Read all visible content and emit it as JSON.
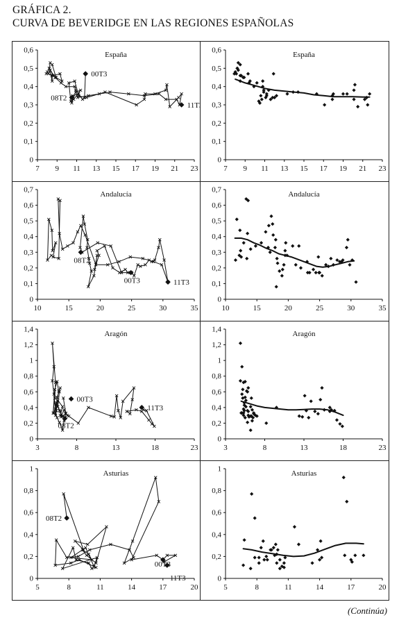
{
  "heading": {
    "line1": "GRÁFICA 2.",
    "line2": "CURVA DE BEVERIDGE EN LAS REGIONES ESPAÑOLAS"
  },
  "footer": "(Continúa)",
  "colors": {
    "ink": "#111111"
  },
  "chart_data": [
    {
      "type": "line",
      "title": "España",
      "xlim": [
        7,
        23
      ],
      "xticks": [
        7,
        9,
        11,
        13,
        15,
        17,
        19,
        21,
        23
      ],
      "ylim": [
        0,
        0.6
      ],
      "yticks": [
        0,
        0.1,
        0.2,
        0.3,
        0.4,
        0.5,
        0.6
      ],
      "ytick_labels": [
        "0",
        "0,1",
        "0,2",
        "0,3",
        "0,4",
        "0,5",
        "0,6"
      ],
      "points": [
        [
          11.9,
          0.47
        ],
        [
          11.8,
          0.34
        ],
        [
          11.2,
          0.35
        ],
        [
          10.8,
          0.43
        ],
        [
          10.2,
          0.42
        ],
        [
          10.4,
          0.32
        ],
        [
          10.7,
          0.33
        ],
        [
          11.4,
          0.38
        ],
        [
          10.9,
          0.37
        ],
        [
          10.5,
          0.31
        ],
        [
          10.6,
          0.35
        ],
        [
          11.2,
          0.36
        ],
        [
          11.6,
          0.33
        ],
        [
          12,
          0.34
        ],
        [
          13.9,
          0.37
        ],
        [
          17.1,
          0.3
        ],
        [
          17.9,
          0.33
        ],
        [
          18,
          0.36
        ],
        [
          19,
          0.36
        ],
        [
          20.1,
          0.38
        ],
        [
          20.2,
          0.41
        ],
        [
          20.5,
          0.29
        ],
        [
          21.4,
          0.34
        ],
        [
          21.7,
          0.36
        ],
        [
          21.5,
          0.3
        ],
        [
          21.2,
          0.33
        ],
        [
          20.1,
          0.33
        ],
        [
          19.4,
          0.36
        ],
        [
          17.9,
          0.35
        ],
        [
          16.3,
          0.36
        ],
        [
          14.4,
          0.37
        ],
        [
          13.3,
          0.36
        ],
        [
          12.2,
          0.35
        ],
        [
          11.1,
          0.34
        ],
        [
          10.9,
          0.38
        ],
        [
          10.8,
          0.4
        ],
        [
          9.9,
          0.4
        ],
        [
          9.4,
          0.42
        ],
        [
          8.8,
          0.45
        ],
        [
          8.3,
          0.49
        ],
        [
          8.1,
          0.47
        ],
        [
          8.5,
          0.46
        ],
        [
          8.5,
          0.43
        ],
        [
          8.2,
          0.5
        ],
        [
          8.6,
          0.46
        ],
        [
          9.3,
          0.47
        ],
        [
          9.5,
          0.43
        ],
        [
          8.9,
          0.45
        ],
        [
          8.5,
          0.52
        ],
        [
          8.3,
          0.53
        ],
        [
          8.2,
          0.5
        ],
        [
          8,
          0.48
        ],
        [
          7.9,
          0.47
        ]
      ],
      "trend": [
        [
          8,
          0.44
        ],
        [
          9,
          0.42
        ],
        [
          10,
          0.405
        ],
        [
          11,
          0.39
        ],
        [
          12,
          0.38
        ],
        [
          13,
          0.375
        ],
        [
          14,
          0.37
        ],
        [
          15,
          0.365
        ],
        [
          16,
          0.355
        ],
        [
          17,
          0.35
        ],
        [
          18,
          0.345
        ],
        [
          19,
          0.345
        ],
        [
          20,
          0.345
        ],
        [
          21,
          0.343
        ],
        [
          21.7,
          0.343
        ]
      ],
      "annotations": [
        {
          "label": "00T3",
          "x": 11.9,
          "y": 0.47,
          "side": "right"
        },
        {
          "label": "08T2",
          "x": 10.5,
          "y": 0.34,
          "side": "left"
        },
        {
          "label": "11T3",
          "x": 21.7,
          "y": 0.3,
          "side": "right"
        }
      ]
    },
    {
      "type": "line",
      "title": "Andalucía",
      "xlim": [
        10,
        35
      ],
      "xticks": [
        10,
        15,
        20,
        25,
        30,
        35
      ],
      "ylim": [
        0,
        0.7
      ],
      "yticks": [
        0,
        0.1,
        0.2,
        0.3,
        0.4,
        0.5,
        0.6,
        0.7
      ],
      "ytick_labels": [
        "0",
        "0,1",
        "0,2",
        "0,3",
        "0,4",
        "0,5",
        "0,6",
        "0,7"
      ],
      "points": [
        [
          24.9,
          0.17
        ],
        [
          23.4,
          0.17
        ],
        [
          21.7,
          0.34
        ],
        [
          19.6,
          0.36
        ],
        [
          17.1,
          0.3
        ],
        [
          16.8,
          0.33
        ],
        [
          17.3,
          0.53
        ],
        [
          17.5,
          0.48
        ],
        [
          18,
          0.38
        ],
        [
          17.9,
          0.33
        ],
        [
          18.2,
          0.26
        ],
        [
          18.3,
          0.23
        ],
        [
          18.6,
          0.18
        ],
        [
          18.1,
          0.08
        ],
        [
          19,
          0.15
        ],
        [
          19.5,
          0.28
        ],
        [
          19.1,
          0.19
        ],
        [
          19.8,
          0.28
        ],
        [
          19.5,
          0.31
        ],
        [
          20.7,
          0.34
        ],
        [
          22,
          0.2
        ],
        [
          23.1,
          0.17
        ],
        [
          24,
          0.19
        ],
        [
          24.4,
          0.17
        ],
        [
          25,
          0.17
        ],
        [
          25.4,
          0.15
        ],
        [
          26,
          0.22
        ],
        [
          26.4,
          0.21
        ],
        [
          27.2,
          0.22
        ],
        [
          27.8,
          0.25
        ],
        [
          28.2,
          0.24
        ],
        [
          28.7,
          0.25
        ],
        [
          29.3,
          0.33
        ],
        [
          29.5,
          0.38
        ],
        [
          30.2,
          0.25
        ],
        [
          30.8,
          0.11
        ],
        [
          29.8,
          0.22
        ],
        [
          28.5,
          0.24
        ],
        [
          26.8,
          0.26
        ],
        [
          24.8,
          0.27
        ],
        [
          23,
          0.24
        ],
        [
          21.2,
          0.22
        ],
        [
          19.3,
          0.22
        ],
        [
          17.6,
          0.41
        ],
        [
          16.9,
          0.47
        ],
        [
          16.4,
          0.43
        ],
        [
          15.7,
          0.36
        ],
        [
          14.8,
          0.34
        ],
        [
          14,
          0.32
        ],
        [
          13.5,
          0.42
        ],
        [
          13.3,
          0.64
        ],
        [
          13.6,
          0.63
        ],
        [
          13.4,
          0.26
        ],
        [
          12.5,
          0.27
        ],
        [
          12.9,
          0.36
        ],
        [
          12.4,
          0.31
        ],
        [
          12.3,
          0.44
        ],
        [
          11.8,
          0.51
        ],
        [
          11.6,
          0.25
        ],
        [
          12.2,
          0.28
        ]
      ],
      "trend": [
        [
          11.5,
          0.39
        ],
        [
          12.5,
          0.39
        ],
        [
          13.5,
          0.38
        ],
        [
          14.5,
          0.36
        ],
        [
          15.5,
          0.345
        ],
        [
          16.5,
          0.325
        ],
        [
          17.5,
          0.31
        ],
        [
          18.5,
          0.29
        ],
        [
          19.5,
          0.28
        ],
        [
          20.5,
          0.27
        ],
        [
          21.5,
          0.255
        ],
        [
          22.5,
          0.24
        ],
        [
          23.5,
          0.225
        ],
        [
          24.5,
          0.21
        ],
        [
          25.5,
          0.205
        ],
        [
          26.5,
          0.21
        ],
        [
          27.5,
          0.22
        ],
        [
          28.5,
          0.23
        ],
        [
          29.5,
          0.24
        ],
        [
          30.5,
          0.245
        ]
      ],
      "annotations": [
        {
          "label": "08T2",
          "x": 16.9,
          "y": 0.3,
          "side": "below"
        },
        {
          "label": "00T3",
          "x": 24.9,
          "y": 0.17,
          "side": "below"
        },
        {
          "label": "11T3",
          "x": 30.8,
          "y": 0.11,
          "side": "right"
        }
      ]
    },
    {
      "type": "line",
      "title": "Aragón",
      "xlim": [
        3,
        23
      ],
      "xticks": [
        3,
        8,
        13,
        18,
        23
      ],
      "ylim": [
        0,
        1.4
      ],
      "yticks": [
        0,
        0.2,
        0.4,
        0.6,
        0.8,
        1,
        1.2,
        1.4
      ],
      "ytick_labels": [
        "0",
        "0,2",
        "0,4",
        "0,6",
        "0,8",
        "1",
        "1,2",
        "1,4"
      ],
      "points": [
        [
          6.3,
          0.52
        ],
        [
          6.6,
          0.33
        ],
        [
          6.8,
          0.3
        ],
        [
          6.4,
          0.37
        ],
        [
          6,
          0.28
        ],
        [
          5.9,
          0.35
        ],
        [
          5.6,
          0.41
        ],
        [
          5.8,
          0.6
        ],
        [
          5.9,
          0.65
        ],
        [
          5.5,
          0.53
        ],
        [
          5.3,
          0.33
        ],
        [
          5.5,
          0.27
        ],
        [
          5.8,
          0.21
        ],
        [
          6.2,
          0.11
        ],
        [
          6.4,
          0.23
        ],
        [
          6.3,
          0.29
        ],
        [
          5.9,
          0.3
        ],
        [
          6.2,
          0.41
        ],
        [
          5.6,
          0.49
        ],
        [
          5.4,
          0.36
        ],
        [
          5.3,
          0.3
        ],
        [
          5.4,
          0.43
        ],
        [
          5.7,
          0.61
        ],
        [
          5.5,
          0.73
        ],
        [
          5.2,
          0.63
        ],
        [
          5,
          0.33
        ],
        [
          5.2,
          0.52
        ],
        [
          5.3,
          0.72
        ],
        [
          4.9,
          1.22
        ],
        [
          5.1,
          0.92
        ],
        [
          4.9,
          0.74
        ],
        [
          5.1,
          0.57
        ],
        [
          5.3,
          0.38
        ],
        [
          5.1,
          0.33
        ],
        [
          5.4,
          0.46
        ],
        [
          5.8,
          0.36
        ],
        [
          6.2,
          0.29
        ],
        [
          6.5,
          0.27
        ],
        [
          6.6,
          0.32
        ],
        [
          7,
          0.29
        ],
        [
          8.2,
          0.2
        ],
        [
          9.5,
          0.4
        ],
        [
          12.4,
          0.29
        ],
        [
          12.8,
          0.28
        ],
        [
          13.1,
          0.55
        ],
        [
          13.3,
          0.36
        ],
        [
          13.6,
          0.27
        ],
        [
          13.9,
          0.48
        ],
        [
          15.3,
          0.65
        ],
        [
          15.1,
          0.5
        ],
        [
          14.8,
          0.32
        ],
        [
          14.4,
          0.35
        ],
        [
          15.6,
          0.37
        ],
        [
          16.3,
          0.35
        ],
        [
          17.2,
          0.24
        ],
        [
          17.6,
          0.19
        ],
        [
          17.9,
          0.16
        ],
        [
          16.9,
          0.36
        ],
        [
          16.5,
          0.37
        ],
        [
          16.3,
          0.4
        ]
      ],
      "trend": [
        [
          5,
          0.48
        ],
        [
          6,
          0.45
        ],
        [
          7,
          0.42
        ],
        [
          8,
          0.4
        ],
        [
          9,
          0.39
        ],
        [
          10,
          0.38
        ],
        [
          11,
          0.37
        ],
        [
          12,
          0.37
        ],
        [
          13,
          0.375
        ],
        [
          14,
          0.38
        ],
        [
          15,
          0.38
        ],
        [
          16,
          0.37
        ],
        [
          17,
          0.34
        ],
        [
          18,
          0.3
        ]
      ],
      "annotations": [
        {
          "label": "00T3",
          "x": 7.3,
          "y": 0.51,
          "side": "right"
        },
        {
          "label": "11T3",
          "x": 16.3,
          "y": 0.4,
          "side": "right"
        },
        {
          "label": "08T2",
          "x": 6.5,
          "y": 0.26,
          "side": "below-right"
        }
      ]
    },
    {
      "type": "line",
      "title": "Asturias",
      "xlim": [
        5,
        20
      ],
      "xticks": [
        5,
        8,
        11,
        14,
        17,
        20
      ],
      "ylim": [
        0,
        1
      ],
      "yticks": [
        0,
        0.2,
        0.4,
        0.6,
        0.8,
        1
      ],
      "ytick_labels": [
        "0",
        "0,2",
        "0,4",
        "0,6",
        "0,8",
        "1"
      ],
      "points": [
        [
          7.8,
          0.55
        ],
        [
          7.5,
          0.77
        ],
        [
          9.4,
          0.26
        ],
        [
          8.6,
          0.34
        ],
        [
          9.8,
          0.31
        ],
        [
          11.6,
          0.47
        ],
        [
          10.6,
          0.14
        ],
        [
          9.7,
          0.21
        ],
        [
          9.3,
          0.26
        ],
        [
          9.9,
          0.22
        ],
        [
          10.2,
          0.17
        ],
        [
          8.2,
          0.19
        ],
        [
          9.6,
          0.28
        ],
        [
          10.4,
          0.11
        ],
        [
          10.7,
          0.19
        ],
        [
          7.4,
          0.09
        ],
        [
          8.4,
          0.28
        ],
        [
          8.7,
          0.17
        ],
        [
          9.9,
          0.14
        ],
        [
          10.2,
          0.09
        ],
        [
          10.6,
          0.1
        ],
        [
          9,
          0.17
        ],
        [
          8.2,
          0.14
        ],
        [
          6.7,
          0.12
        ],
        [
          6.8,
          0.35
        ],
        [
          7.8,
          0.19
        ],
        [
          8.9,
          0.2
        ],
        [
          10,
          0.26
        ],
        [
          12,
          0.31
        ],
        [
          13.8,
          0.26
        ],
        [
          14.2,
          0.19
        ],
        [
          13.3,
          0.14
        ],
        [
          14.1,
          0.34
        ],
        [
          16.3,
          0.92
        ],
        [
          16.6,
          0.7
        ],
        [
          14,
          0.17
        ],
        [
          16.4,
          0.21
        ],
        [
          17,
          0.17
        ],
        [
          17.4,
          0.21
        ],
        [
          18.2,
          0.21
        ],
        [
          17.1,
          0.15
        ]
      ],
      "trend": [
        [
          6.7,
          0.27
        ],
        [
          7.5,
          0.26
        ],
        [
          8.5,
          0.24
        ],
        [
          9.5,
          0.225
        ],
        [
          10.5,
          0.21
        ],
        [
          11.5,
          0.2
        ],
        [
          12.5,
          0.205
        ],
        [
          13.5,
          0.23
        ],
        [
          14.5,
          0.265
        ],
        [
          15.5,
          0.3
        ],
        [
          16.5,
          0.32
        ],
        [
          17.5,
          0.32
        ],
        [
          18.2,
          0.315
        ]
      ],
      "annotations": [
        {
          "label": "08T2",
          "x": 7.8,
          "y": 0.55,
          "side": "left"
        },
        {
          "label": "00T3",
          "x": 17,
          "y": 0.17,
          "side": "left-below"
        },
        {
          "label": "11T3",
          "x": 17.4,
          "y": 0.12,
          "side": "right-below"
        }
      ]
    }
  ]
}
